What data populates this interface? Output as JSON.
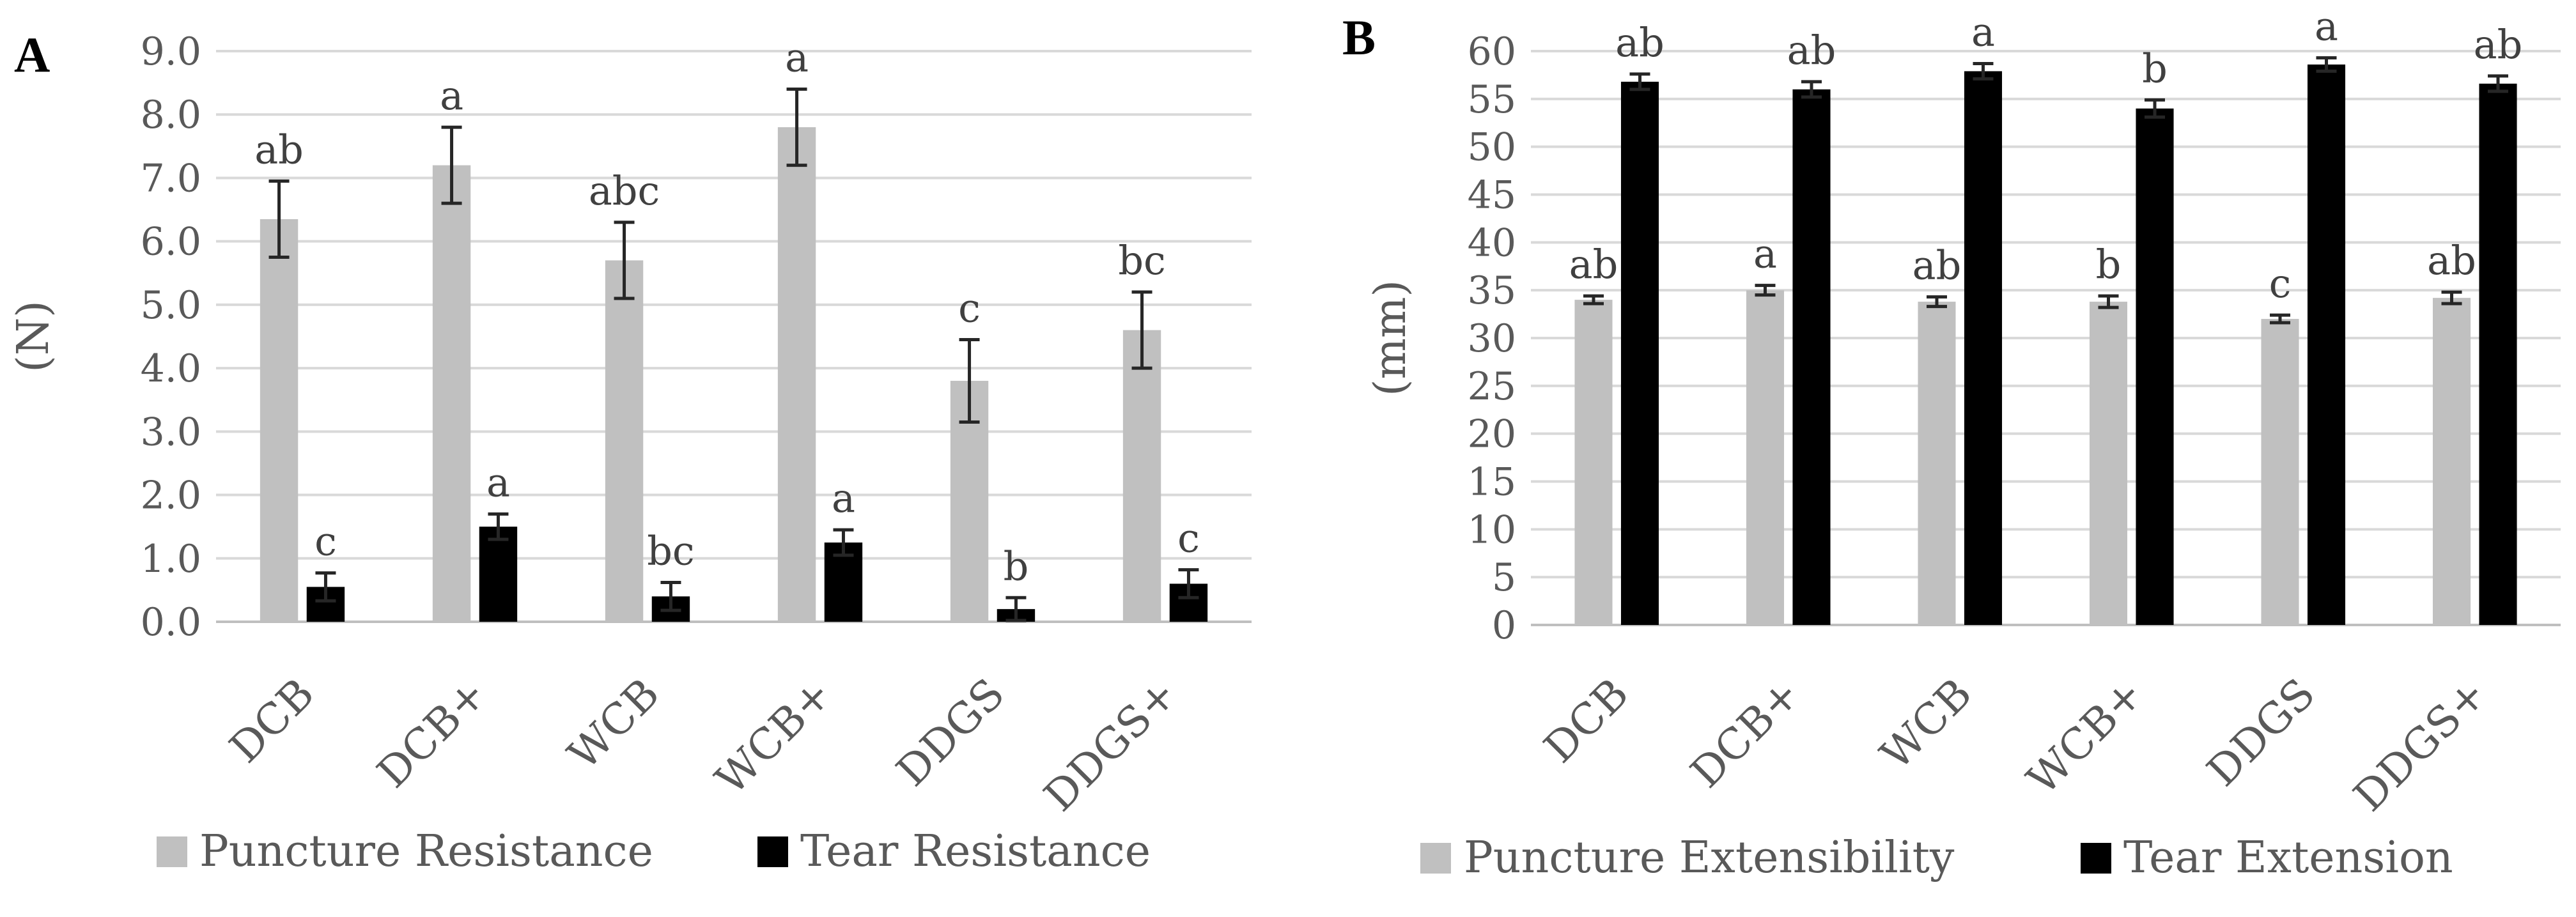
{
  "chart_data": [
    {
      "type": "bar",
      "panel_label": "A",
      "ylabel": "(N)",
      "ylim": [
        0,
        9
      ],
      "ytick_step": 1,
      "yticks": [
        "0.0",
        "1.0",
        "2.0",
        "3.0",
        "4.0",
        "5.0",
        "6.0",
        "7.0",
        "8.0",
        "9.0"
      ],
      "categories": [
        "DCB",
        "DCB+",
        "WCB",
        "WCB+",
        "DDGS",
        "DDGS+"
      ],
      "grid": true,
      "legend_position": "bottom",
      "series": [
        {
          "name": "Puncture Resistance",
          "color": "#c0c0c0",
          "values": [
            6.35,
            7.2,
            5.7,
            7.8,
            3.8,
            4.6
          ],
          "errors": [
            0.6,
            0.6,
            0.6,
            0.6,
            0.65,
            0.6
          ],
          "labels": [
            "ab",
            "a",
            "abc",
            "a",
            "c",
            "bc"
          ]
        },
        {
          "name": "Tear Resistance",
          "color": "#000000",
          "values": [
            0.55,
            1.5,
            0.4,
            1.25,
            0.2,
            0.6
          ],
          "errors": [
            0.22,
            0.2,
            0.22,
            0.2,
            0.18,
            0.22
          ],
          "labels": [
            "c",
            "a",
            "bc",
            "a",
            "b",
            "c"
          ]
        }
      ]
    },
    {
      "type": "bar",
      "panel_label": "B",
      "ylabel": "(mm)",
      "ylim": [
        0,
        60
      ],
      "ytick_step": 5,
      "yticks": [
        "0",
        "5",
        "10",
        "15",
        "20",
        "25",
        "30",
        "35",
        "40",
        "45",
        "50",
        "55",
        "60"
      ],
      "categories": [
        "DCB",
        "DCB+",
        "WCB",
        "WCB+",
        "DDGS",
        "DDGS+"
      ],
      "grid": true,
      "legend_position": "bottom",
      "series": [
        {
          "name": "Puncture Extensibility",
          "color": "#c0c0c0",
          "values": [
            34.0,
            35.0,
            33.8,
            33.8,
            32.0,
            34.2
          ],
          "errors": [
            0.4,
            0.5,
            0.5,
            0.6,
            0.4,
            0.6
          ],
          "labels": [
            "ab",
            "a",
            "ab",
            "b",
            "c",
            "ab"
          ]
        },
        {
          "name": "Tear Extension",
          "color": "#000000",
          "values": [
            56.8,
            56.0,
            57.9,
            54.0,
            58.6,
            56.6
          ],
          "errors": [
            0.8,
            0.8,
            0.8,
            0.9,
            0.7,
            0.8
          ],
          "labels": [
            "ab",
            "ab",
            "a",
            "b",
            "a",
            "ab"
          ]
        }
      ]
    }
  ]
}
